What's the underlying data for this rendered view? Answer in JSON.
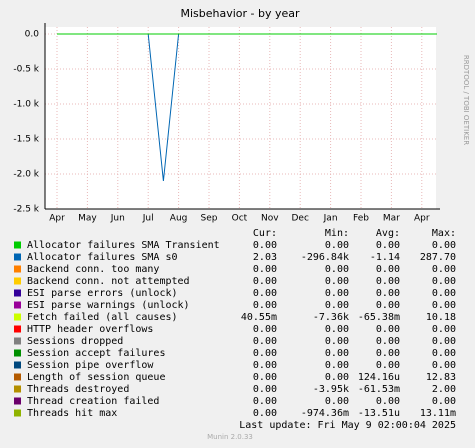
{
  "chart_data": {
    "type": "line",
    "title": "Misbehavior - by year",
    "side_text": "RRDTOOL / TOBI OETIKER",
    "footer": "Last update:  Fri May  9 02:00:04 2025",
    "credit": "Munin 2.0.33",
    "categories": [
      "Apr",
      null,
      "May",
      null,
      "Jun",
      null,
      "Jul",
      null,
      "Aug",
      null,
      "Sep",
      null,
      "Oct",
      null,
      "Nov",
      null,
      "Dec",
      null,
      "Jan",
      null,
      "Feb",
      null,
      "Mar",
      null,
      "Apr",
      null
    ],
    "ylim": [
      -2500,
      100
    ],
    "yticks": [
      {
        "value": 0,
        "label": "0.0"
      },
      {
        "value": -500,
        "label": "-0.5 k"
      },
      {
        "value": -1000,
        "label": "-1.0 k"
      },
      {
        "value": -1500,
        "label": "-1.5 k"
      },
      {
        "value": -2000,
        "label": "-2.0 k"
      },
      {
        "value": -2500,
        "label": "-2.5 k"
      }
    ],
    "grid": true,
    "stat_headers": [
      "Cur:",
      "Min:",
      "Avg:",
      "Max:"
    ],
    "series": [
      {
        "name": "Allocator failures SMA Transient",
        "color": "#00cc00",
        "stats": [
          "0.00",
          "0.00",
          "0.00",
          "0.00"
        ],
        "values": [
          0,
          0,
          0,
          0,
          0,
          0,
          0,
          0,
          0,
          0,
          0,
          0,
          0,
          0,
          0,
          0,
          0,
          0,
          0,
          0,
          0,
          0,
          0,
          0,
          0,
          0
        ]
      },
      {
        "name": "Allocator failures SMA s0",
        "color": "#0066b3",
        "stats": [
          "2.03",
          "-296.84k",
          "-1.14",
          "287.70"
        ],
        "values": [
          0,
          0,
          0,
          0,
          0,
          0,
          0,
          -2100,
          0,
          0,
          0,
          0,
          0,
          0,
          0,
          0,
          0,
          0,
          0,
          0,
          0,
          0,
          0,
          0,
          0,
          0
        ]
      },
      {
        "name": "Backend conn. too many",
        "color": "#ff8000",
        "stats": [
          "0.00",
          "0.00",
          "0.00",
          "0.00"
        ]
      },
      {
        "name": "Backend conn. not attempted",
        "color": "#ffcc00",
        "stats": [
          "0.00",
          "0.00",
          "0.00",
          "0.00"
        ]
      },
      {
        "name": "ESI parse errors (unlock)",
        "color": "#330099",
        "stats": [
          "0.00",
          "0.00",
          "0.00",
          "0.00"
        ]
      },
      {
        "name": "ESI parse warnings (unlock)",
        "color": "#990099",
        "stats": [
          "0.00",
          "0.00",
          "0.00",
          "0.00"
        ]
      },
      {
        "name": "Fetch failed (all causes)",
        "color": "#ccff00",
        "stats": [
          "40.55m",
          "-7.36k",
          "-65.38m",
          "10.18"
        ],
        "values": [
          0,
          0,
          0,
          0,
          0,
          0,
          0,
          0,
          0,
          0,
          0,
          0,
          0,
          0,
          0,
          0,
          0,
          0,
          0,
          0,
          0,
          0,
          0,
          0,
          0,
          0
        ]
      },
      {
        "name": "HTTP header overflows",
        "color": "#ff0000",
        "stats": [
          "0.00",
          "0.00",
          "0.00",
          "0.00"
        ]
      },
      {
        "name": "Sessions dropped",
        "color": "#808080",
        "stats": [
          "0.00",
          "0.00",
          "0.00",
          "0.00"
        ]
      },
      {
        "name": "Session accept failures",
        "color": "#008f00",
        "stats": [
          "0.00",
          "0.00",
          "0.00",
          "0.00"
        ]
      },
      {
        "name": "Session pipe overflow",
        "color": "#00487d",
        "stats": [
          "0.00",
          "0.00",
          "0.00",
          "0.00"
        ]
      },
      {
        "name": "Length of session queue",
        "color": "#b35a00",
        "stats": [
          "0.00",
          "0.00",
          "124.16u",
          "12.83"
        ]
      },
      {
        "name": "Threads destroyed",
        "color": "#b38f00",
        "stats": [
          "0.00",
          "-3.95k",
          "-61.53m",
          "2.00"
        ]
      },
      {
        "name": "Thread creation failed",
        "color": "#6b006b",
        "stats": [
          "0.00",
          "0.00",
          "0.00",
          "0.00"
        ]
      },
      {
        "name": "Threads hit max",
        "color": "#8fb300",
        "stats": [
          "0.00",
          "-974.36m",
          "-13.51u",
          "13.11m"
        ]
      }
    ]
  }
}
